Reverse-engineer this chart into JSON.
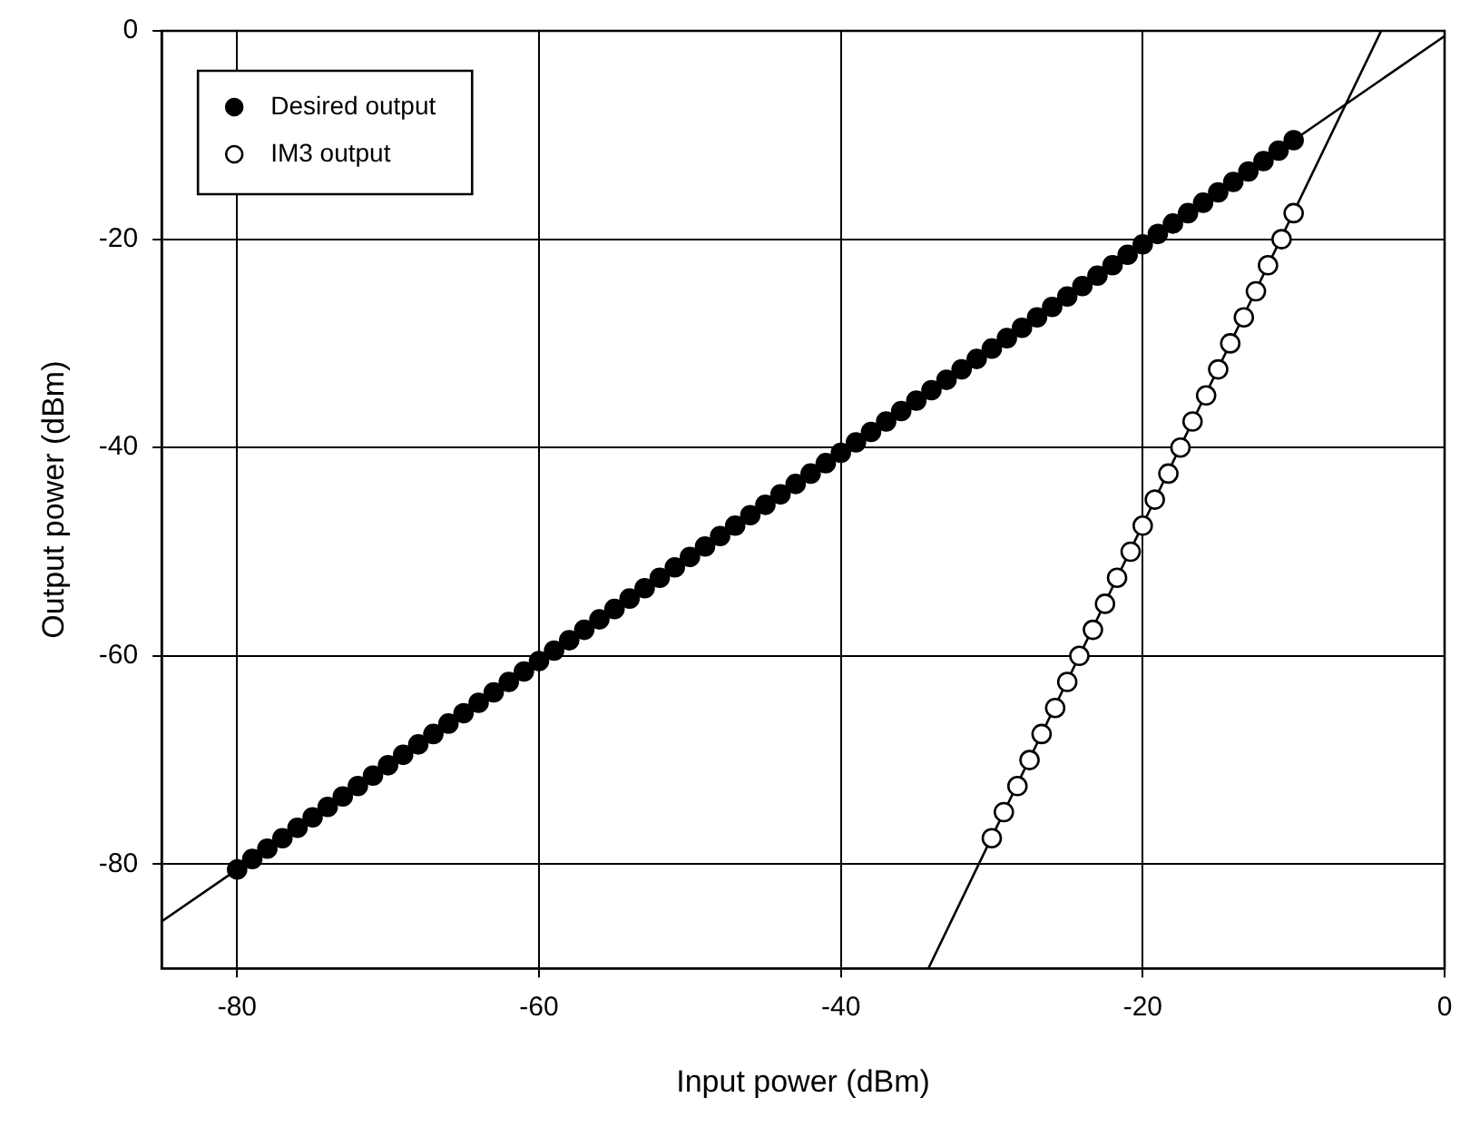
{
  "chart_data": {
    "type": "scatter",
    "xlabel": "Input power (dBm)",
    "ylabel": "Output power (dBm)",
    "xlim": [
      -85,
      0
    ],
    "xticks": [
      -80,
      -60,
      -40,
      -20,
      0
    ],
    "ylim": [
      -90,
      0
    ],
    "yticks": [
      -80,
      -60,
      -40,
      -20,
      0
    ],
    "grid": true,
    "legend": "top left",
    "marker": "circle",
    "series": [
      {
        "name": "Desired output",
        "color": "#000000",
        "x": [
          -80,
          -79,
          -78,
          -77,
          -76,
          -75,
          -74,
          -73,
          -72,
          -71,
          -70,
          -69,
          -68,
          -67,
          -66,
          -65,
          -64,
          -63,
          -62,
          -61,
          -60,
          -59,
          -58,
          -57,
          -56,
          -55,
          -54,
          -53,
          -52,
          -51,
          -50,
          -49,
          -48,
          -47,
          -46,
          -45,
          -44,
          -43,
          -42,
          -41,
          -40,
          -39,
          -38,
          -37,
          -36,
          -35,
          -34,
          -33,
          -32,
          -31,
          -30,
          -29,
          -28,
          -27,
          -26,
          -25,
          -24,
          -23,
          -22,
          -21,
          -20,
          -19,
          -18,
          -17,
          -16,
          -15,
          -14,
          -13,
          -12,
          -11,
          -10
        ],
        "values": [
          -80.5,
          -79.5,
          -78.5,
          -77.5,
          -76.5,
          -75.5,
          -74.5,
          -73.5,
          -72.5,
          -71.5,
          -70.5,
          -69.5,
          -68.5,
          -67.5,
          -66.5,
          -65.5,
          -64.5,
          -63.5,
          -62.5,
          -61.5,
          -60.5,
          -59.5,
          -58.5,
          -57.5,
          -56.5,
          -55.5,
          -54.5,
          -53.5,
          -52.5,
          -51.5,
          -50.5,
          -49.5,
          -48.5,
          -47.5,
          -46.5,
          -45.5,
          -44.5,
          -43.5,
          -42.5,
          -41.5,
          -40.5,
          -39.5,
          -38.5,
          -37.5,
          -36.5,
          -35.5,
          -34.5,
          -33.5,
          -32.5,
          -31.5,
          -30.5,
          -29.5,
          -28.5,
          -27.5,
          -26.5,
          -25.5,
          -24.5,
          -23.5,
          -22.5,
          -21.5,
          -20.5,
          -19.5,
          -18.5,
          -17.5,
          -16.5,
          -15.5,
          -14.5,
          -13.5,
          -12.5,
          -11.5,
          -10.5
        ]
      },
      {
        "name": "IM3 output",
        "color": "#ffffff",
        "x": [
          -30,
          -29.2,
          -28.3,
          -27.5,
          -26.7,
          -25.8,
          -25,
          -24.2,
          -23.3,
          -22.5,
          -21.7,
          -20.8,
          -20,
          -19.2,
          -18.3,
          -17.5,
          -16.7,
          -15.8,
          -15,
          -14.2,
          -13.3,
          -12.5,
          -11.7,
          -10.8,
          -10
        ],
        "values": [
          -77.5,
          -75,
          -72.5,
          -70,
          -67.5,
          -65,
          -62.5,
          -60,
          -57.5,
          -55,
          -52.5,
          -50,
          -47.5,
          -45,
          -42.5,
          -40,
          -37.5,
          -35,
          -32.5,
          -30,
          -27.5,
          -25,
          -22.5,
          -20,
          -17.5
        ]
      },
      {
        "type": "line",
        "color": "#000000",
        "marker": "none",
        "x": [
          -85,
          0
        ],
        "values": [
          -85.5,
          -0.5
        ]
      },
      {
        "type": "line",
        "color": "#000000",
        "marker": "none",
        "x": [
          -34.2,
          -4.2
        ],
        "values": [
          -90,
          0
        ]
      }
    ]
  }
}
